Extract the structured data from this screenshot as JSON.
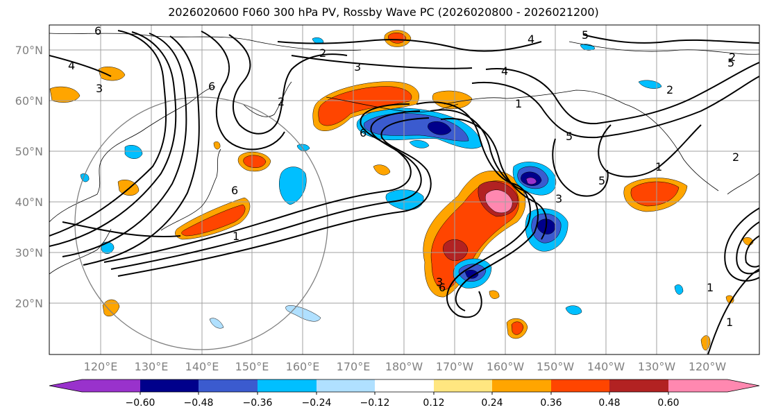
{
  "title": "2026020600 F060 300 hPa PV, Rossby Wave PC (2026020800 - 2026021200)",
  "lat_labels": [
    "20°N",
    "30°N",
    "40°N",
    "50°N",
    "60°N",
    "70°N"
  ],
  "lon_labels": [
    "120°E",
    "130°E",
    "140°E",
    "150°E",
    "160°E",
    "170°E",
    "180°W",
    "170°W",
    "160°W",
    "150°W",
    "140°W",
    "130°W",
    "120°W"
  ],
  "colorbar": {
    "ticks": [
      "−0.60",
      "−0.48",
      "−0.36",
      "−0.24",
      "−0.12",
      "0.12",
      "0.24",
      "0.36",
      "0.48",
      "0.60"
    ],
    "bins": [
      "#9932cc",
      "#00008b",
      "#3b5bcf",
      "#00bfff",
      "#b0e0ff",
      "#ffffff",
      "#ffe680",
      "#ffa500",
      "#ff4500",
      "#b22222",
      "#ff88b0"
    ]
  },
  "contour_labels": [
    "6",
    "2",
    "3",
    "4",
    "3",
    "6",
    "2",
    "6",
    "6",
    "1",
    "4",
    "5",
    "2",
    "1",
    "5",
    "5",
    "2",
    "3",
    "6",
    "1",
    "4",
    "3",
    "1",
    "1",
    "2",
    "5"
  ],
  "colors": {
    "neg_light": "#b0e0ff",
    "neg_mid": "#00bfff",
    "neg_strong": "#3b5bcf",
    "neg_dark": "#00008b",
    "neg_max": "#9932cc",
    "pos_light": "#ffe680",
    "pos_mid": "#ffa500",
    "pos_strong": "#ff4500",
    "pos_dark": "#b22222",
    "pos_max": "#ff88b0"
  }
}
